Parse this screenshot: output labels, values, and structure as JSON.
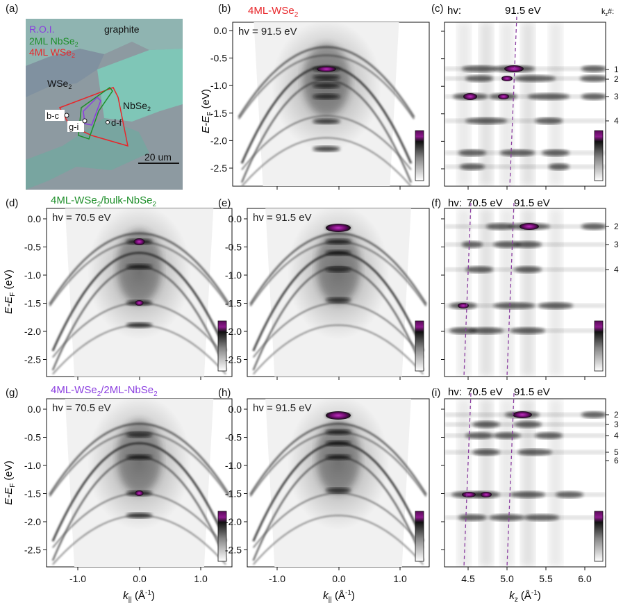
{
  "panel_labels": [
    "(a)",
    "(b)",
    "(c)",
    "(d)",
    "(e)",
    "(f)",
    "(g)",
    "(h)",
    "(i)"
  ],
  "micrograph": {
    "legend_roi": "R.O.I.",
    "legend_2ml": "2ML NbSe",
    "legend_2ml_sub": "2",
    "legend_4ml": "4ML WSe",
    "legend_4ml_sub": "2",
    "label_graphite": "graphite",
    "label_wse2": "WSe",
    "label_wse2_sub": "2",
    "label_nbse2": "NbSe",
    "label_nbse2_sub": "2",
    "marker_bc": "b-c",
    "marker_gi": "g-i",
    "marker_df": "d-f",
    "scalebar": "20 um",
    "colors": {
      "roi": "#8a3de0",
      "nbse2": "#1e8f2a",
      "wse2": "#e8262a"
    }
  },
  "row_titles": {
    "b": "4ML-WSe",
    "b_sub": "2",
    "d_part1": "4ML-WSe",
    "d_sub1": "2",
    "d_part2": "/bulk-NbSe",
    "d_sub2": "2",
    "g_part1": "4ML-WSe",
    "g_sub1": "2",
    "g_part2": "/2ML-NbSe",
    "g_sub2": "2",
    "colors": {
      "b": "#e8262a",
      "d": "#1e8f2a",
      "g": "#8a3de0"
    }
  },
  "photon_labels": {
    "b": "hv = 91.5 eV",
    "d": "hv = 70.5 eV",
    "e": "hv = 91.5 eV",
    "g": "hv = 70.5 eV",
    "h": "hv = 91.5 eV"
  },
  "kz_headers": {
    "c_hv": "hv:",
    "c_val": "91.5 eV",
    "kz_label": "k",
    "kz_sub": "z",
    "kz_hash": "#:",
    "f_hv": "hv:",
    "f_val1": "70.5 eV",
    "f_val2": "91.5 eV",
    "i_hv": "hv:",
    "i_val1": "70.5 eV",
    "i_val2": "91.5 eV"
  },
  "kz_numbers": {
    "c": [
      "1",
      "2",
      "3",
      "4"
    ],
    "f": [
      "2",
      "3",
      "4"
    ],
    "i": [
      "2",
      "3",
      "4",
      "5",
      "6"
    ]
  },
  "axes": {
    "energy_ticks_top": [
      "0.0",
      "-0.5",
      "-1.0",
      "-1.5",
      "-2.0",
      "-2.5"
    ],
    "energy_ticks": [
      "0.0",
      "-0.5",
      "-1.0",
      "-1.5",
      "-2.0",
      "-2.5"
    ],
    "energy_label": "E-E",
    "energy_label_sub": "F",
    "energy_label_unit": " (eV)",
    "kpar_ticks": [
      "-1.0",
      "0.0",
      "1.0"
    ],
    "kpar_label": "k",
    "kpar_sub": "||",
    "kpar_unit": " (Å",
    "kpar_sup": "-1",
    "kpar_close": ")",
    "kz_ticks": [
      "4.5",
      "5.0",
      "5.5",
      "6.0"
    ],
    "kz_axis_label": "k",
    "kz_axis_sub": "z",
    "kz_axis_unit": " (Å",
    "kz_axis_sup": "-1",
    "kz_axis_close": ")"
  }
}
